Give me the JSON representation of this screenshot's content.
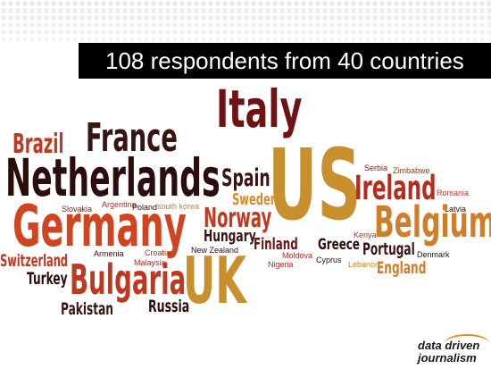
{
  "banner": {
    "title": "108 respondents from 40 countries"
  },
  "cloud": {
    "italy": "Italy",
    "us": "US",
    "france": "France",
    "brazil": "Brazil",
    "netherlands": "Netherlands",
    "spain": "Spain",
    "sweden": "Sweden",
    "norway": "Norway",
    "hungary": "Hungary",
    "ireland": "Ireland",
    "serbia": "Serbia",
    "zimbabwe": "Zimbabwe",
    "romania": "Romania",
    "latvia": "Latvia",
    "belgium": "Belgium",
    "germany": "Germany",
    "slovakia": "Slovakia",
    "argentina": "Argentina",
    "poland": "Poland",
    "south_korea": "south korea",
    "finland": "Finland",
    "greece": "Greece",
    "kenya": "Kenya",
    "portugal": "Portugal",
    "denmark": "Denmark",
    "england": "England",
    "switzerland": "Switzerland",
    "armenia": "Armenia",
    "croatia": "Croatia",
    "malaysia": "Malaysia",
    "new_zealand": "New Zealand",
    "moldova": "Moldova",
    "nigeria": "Nigeria",
    "cyprus": "Cyprus",
    "lebanon": "Lebanon",
    "turkey": "Turkey",
    "bulgaria": "Bulgaria",
    "uk": "UK",
    "pakistan": "Pakistan",
    "russia": "Russia"
  },
  "logo": {
    "line1": "data driven",
    "line2": "journalism"
  }
}
